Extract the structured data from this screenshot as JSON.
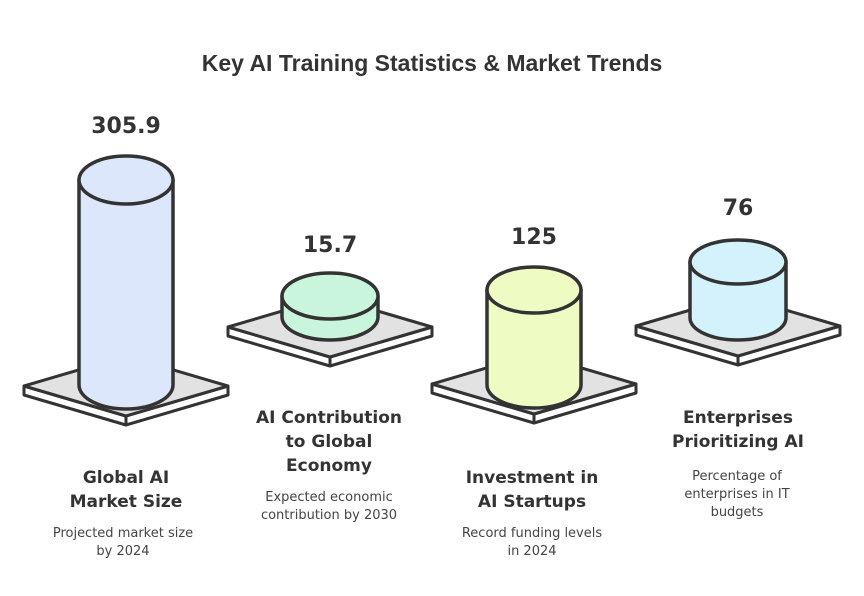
{
  "title": "Key AI Training Statistics & Market Trends",
  "colors": {
    "outline": "#333333",
    "platform_top": "#e2e2e2",
    "platform_side": "#ffffff"
  },
  "items": [
    {
      "value": "305.9",
      "label_lines": [
        "Global AI",
        "Market Size"
      ],
      "desc_lines": [
        "Projected market size",
        "by 2024"
      ],
      "color": "#dce7fb",
      "icon": "cylinder-icon"
    },
    {
      "value": "15.7",
      "label_lines": [
        "AI Contribution",
        "to Global",
        "Economy"
      ],
      "desc_lines": [
        "Expected economic",
        "contribution by 2030"
      ],
      "color": "#c9f5dc",
      "icon": "cylinder-icon"
    },
    {
      "value": "125",
      "label_lines": [
        "Investment in",
        "AI Startups"
      ],
      "desc_lines": [
        "Record funding levels",
        "in 2024"
      ],
      "color": "#eefcc4",
      "icon": "cylinder-icon"
    },
    {
      "value": "76",
      "label_lines": [
        "Enterprises",
        "Prioritizing AI"
      ],
      "desc_lines": [
        "Percentage of",
        "enterprises in IT",
        "budgets"
      ],
      "color": "#d3f2fc",
      "icon": "cylinder-icon"
    }
  ]
}
